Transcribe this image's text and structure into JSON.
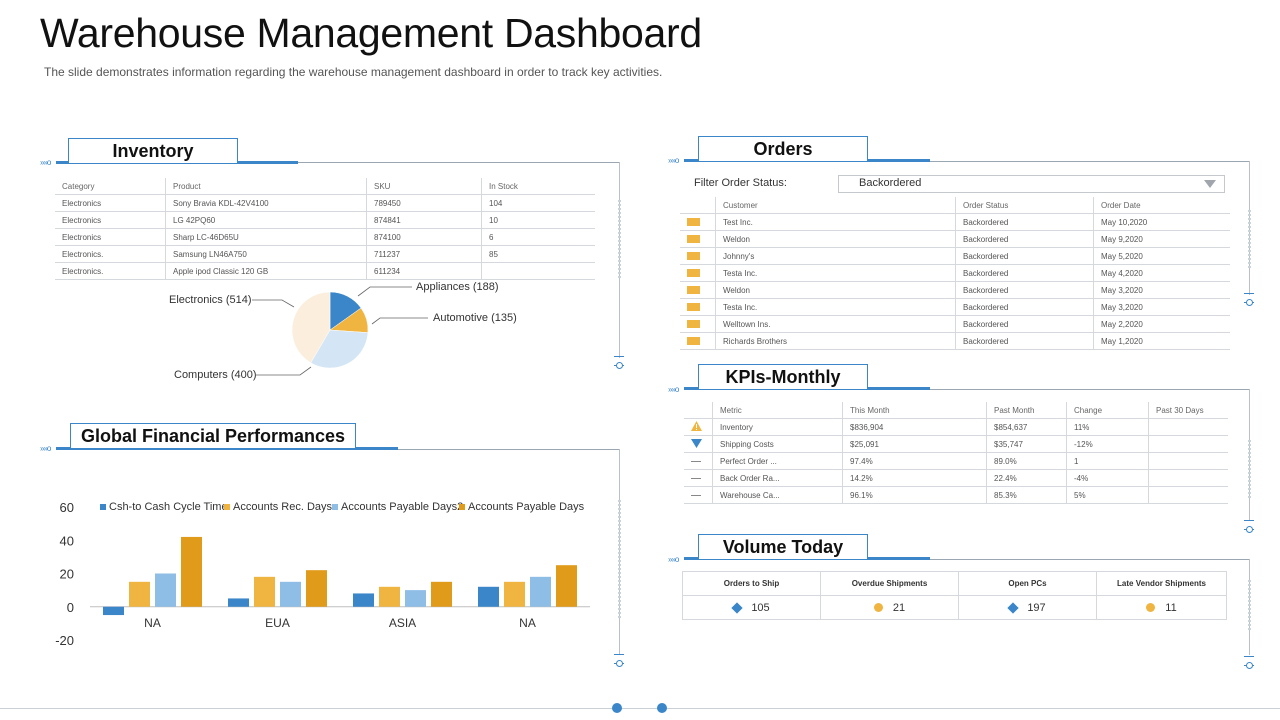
{
  "header": {
    "title": "Warehouse Management Dashboard",
    "subtitle": "The slide demonstrates information regarding the warehouse management dashboard in order to track key activities."
  },
  "inventory": {
    "heading": "Inventory",
    "columns": [
      "Category",
      "Product",
      "SKU",
      "In Stock"
    ],
    "rows": [
      [
        "Electronics",
        "Sony Bravia KDL-42V4100",
        "789450",
        "104"
      ],
      [
        "Electronics",
        "LG 42PQ60",
        "874841",
        "10"
      ],
      [
        "Electronics",
        "Sharp LC-46D65U",
        "874100",
        "6"
      ],
      [
        "Electronics.",
        "Samsung LN46A750",
        "711237",
        "85"
      ],
      [
        "Electronics.",
        "Apple ipod Classic 120 GB",
        "611234",
        ""
      ]
    ],
    "pie_labels": {
      "electronics": "Electronics (514)",
      "appliances": "Appliances (188)",
      "automotive": "Automotive (135)",
      "computers": "Computers (400)"
    }
  },
  "orders": {
    "heading": "Orders",
    "filter_label": "Filter  Order Status:",
    "filter_value": "Backordered",
    "columns": [
      "Customer",
      "Order Status",
      "Order Date"
    ],
    "rows": [
      [
        "Test Inc.",
        "Backordered",
        "May 10,2020"
      ],
      [
        "Weldon",
        "Backordered",
        "May 9,2020"
      ],
      [
        "Johnny's",
        "Backordered",
        "May 5,2020"
      ],
      [
        "Testa Inc.",
        "Backordered",
        "May 4,2020"
      ],
      [
        "Weldon",
        "Backordered",
        "May 3,2020"
      ],
      [
        "Testa Inc.",
        "Backordered",
        "May 3,2020"
      ],
      [
        "Welltown Ins.",
        "Backordered",
        "May 2,2020"
      ],
      [
        "Richards Brothers",
        "Backordered",
        "May 1,2020"
      ]
    ],
    "flag_color": "#f0b541"
  },
  "kpis": {
    "heading": "KPIs-Monthly",
    "columns": [
      "Metric",
      "This Month",
      "Past Month",
      "Change",
      "Past 30 Days"
    ],
    "rows": [
      {
        "icon": "warning-icon",
        "cells": [
          "Inventory",
          "$836,904",
          "$854,637",
          "11%",
          ""
        ]
      },
      {
        "icon": "triangle-down-icon",
        "cells": [
          "Shipping Costs",
          "$25,091",
          "$35,747",
          "-12%",
          ""
        ]
      },
      {
        "icon": "dash-icon",
        "cells": [
          "Perfect Order ...",
          "97.4%",
          "89.0%",
          "1",
          ""
        ]
      },
      {
        "icon": "dash-icon",
        "cells": [
          "Back Order Ra...",
          "14.2%",
          "22.4%",
          "-4%",
          ""
        ]
      },
      {
        "icon": "dash-icon",
        "cells": [
          "Warehouse Ca...",
          "96.1%",
          "85.3%",
          "5%",
          ""
        ]
      }
    ]
  },
  "volume": {
    "heading": "Volume Today",
    "columns": [
      "Orders to Ship",
      "Overdue Shipments",
      "Open PCs",
      "Late Vendor Shipments"
    ],
    "values": [
      {
        "icon": "diamond-icon",
        "value": "105"
      },
      {
        "icon": "circle-icon",
        "value": "21"
      },
      {
        "icon": "diamond-icon",
        "value": "197"
      },
      {
        "icon": "circle-icon",
        "value": "11"
      }
    ]
  },
  "financial": {
    "heading": "Global Financial Performances"
  },
  "chart_data": [
    {
      "type": "pie",
      "categories": [
        "Appliances",
        "Automotive",
        "Computers",
        "Electronics"
      ],
      "values": [
        188,
        135,
        400,
        514
      ],
      "colors": [
        "#3a86c8",
        "#f0b541",
        "#d4e6f5",
        "#fbeedd"
      ],
      "title": ""
    },
    {
      "type": "bar",
      "categories": [
        "NA",
        "EUA",
        "ASIA",
        "NA"
      ],
      "series": [
        {
          "name": "Csh-to Cash Cycle Time",
          "values": [
            -5,
            5,
            8,
            12
          ],
          "color": "#3a86c8"
        },
        {
          "name": "Accounts Rec. Days",
          "values": [
            15,
            18,
            12,
            15
          ],
          "color": "#f0b541"
        },
        {
          "name": "Accounts Payable Days2",
          "values": [
            20,
            15,
            10,
            18
          ],
          "color": "#8ebde6"
        },
        {
          "name": "Accounts Payable Days",
          "values": [
            42,
            22,
            15,
            25
          ],
          "color": "#e09b1a"
        }
      ],
      "yticks": [
        "60",
        "40",
        "20",
        "0",
        "-20"
      ],
      "ylim": [
        -20,
        60
      ],
      "legend": "top",
      "title": "",
      "xlabel": "",
      "ylabel": ""
    }
  ]
}
